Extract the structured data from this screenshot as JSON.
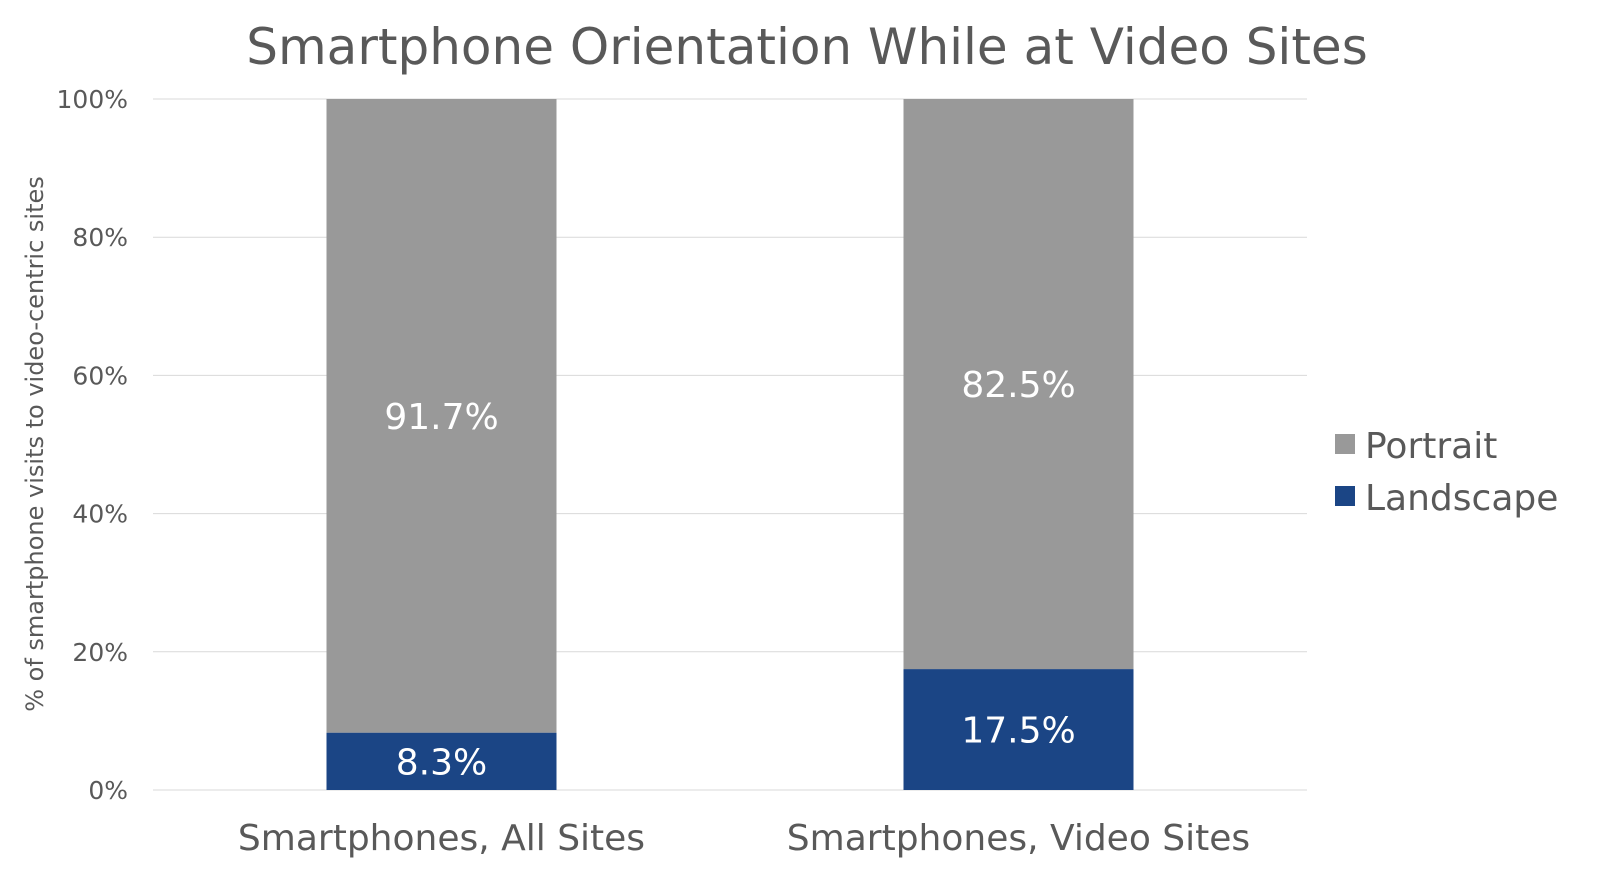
{
  "chart_data": {
    "type": "bar",
    "stacked": true,
    "title": "Smartphone Orientation While at Video Sites",
    "ylabel": "% of smartphone visits to video-centric sites",
    "xlabel": "",
    "categories": [
      "Smartphones, All Sites",
      "Smartphones, Video Sites"
    ],
    "series": [
      {
        "name": "Landscape",
        "color": "#1b4585",
        "values": [
          8.3,
          17.5
        ],
        "labels": [
          "8.3%",
          "17.5%"
        ]
      },
      {
        "name": "Portrait",
        "color": "#999999",
        "values": [
          91.7,
          82.5
        ],
        "labels": [
          "91.7%",
          "82.5%"
        ]
      }
    ],
    "ylim": [
      0,
      100
    ],
    "yticks": [
      "0%",
      "20%",
      "40%",
      "60%",
      "80%",
      "100%"
    ],
    "ytick_values": [
      0,
      20,
      40,
      60,
      80,
      100
    ],
    "grid": true,
    "legend": {
      "position": "right",
      "order": [
        "Portrait",
        "Landscape"
      ]
    }
  }
}
